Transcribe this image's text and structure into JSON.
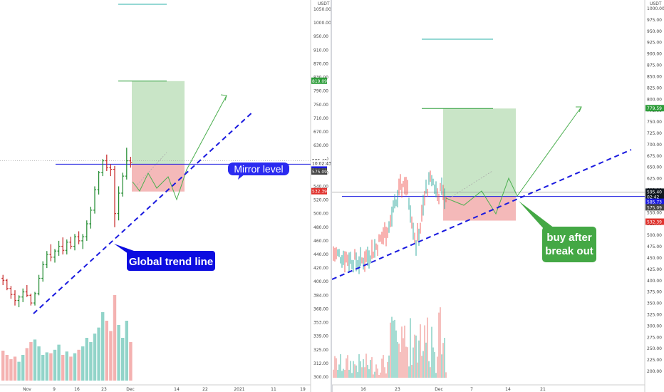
{
  "panels": [
    {
      "id": "left",
      "price_unit": "USDT",
      "price_ticks": [
        "1050.00",
        "1000.00",
        "950.00",
        "910.00",
        "870.00",
        "830.00",
        "790.00",
        "750.00",
        "710.00",
        "670.00",
        "630.00",
        "600.00",
        "560.00",
        "540.00",
        "520.00",
        "500.00",
        "480.00",
        "460.00",
        "440.00",
        "420.00",
        "400.00",
        "384.00",
        "368.00",
        "353.00",
        "339.00",
        "325.00",
        "312.00",
        "300.00"
      ],
      "time_ticks": [
        "Nov",
        "9",
        "16",
        "23",
        "Dec",
        "14",
        "22",
        "2021",
        "11",
        "19"
      ],
      "price_labels": [
        {
          "text": "819.09",
          "color": "#2e9d3a"
        },
        {
          "text": "595.40",
          "color": "#ffffff",
          "fg": "#222"
        },
        {
          "text": "10:02:43",
          "color": "#ffffff",
          "fg": "#222"
        },
        {
          "text": "584.92",
          "color": "#1a1adf"
        },
        {
          "text": "575.09",
          "color": "#444444"
        },
        {
          "text": "532.39",
          "color": "#e0322d"
        }
      ],
      "annotations": [
        {
          "text": "Mirror level",
          "bg": "#2a2af0"
        },
        {
          "text": "Global trend line",
          "bg": "#0c0ce0"
        }
      ],
      "chart_data": {
        "type": "candlestick",
        "timeframe_note": "daily candles, Nov to early Dec",
        "ohlc_approx": [
          [
            405,
            410,
            396,
            402
          ],
          [
            402,
            404,
            390,
            392
          ],
          [
            392,
            395,
            380,
            385
          ],
          [
            385,
            390,
            372,
            378
          ],
          [
            378,
            384,
            370,
            382
          ],
          [
            382,
            392,
            376,
            388
          ],
          [
            388,
            396,
            382,
            384
          ],
          [
            384,
            386,
            372,
            375
          ],
          [
            375,
            388,
            372,
            386
          ],
          [
            386,
            410,
            384,
            405
          ],
          [
            405,
            430,
            400,
            425
          ],
          [
            425,
            445,
            420,
            440
          ],
          [
            440,
            455,
            430,
            436
          ],
          [
            436,
            448,
            428,
            445
          ],
          [
            445,
            460,
            438,
            452
          ],
          [
            452,
            465,
            440,
            446
          ],
          [
            446,
            462,
            440,
            458
          ],
          [
            458,
            466,
            448,
            452
          ],
          [
            452,
            470,
            446,
            466
          ],
          [
            466,
            474,
            455,
            460
          ],
          [
            460,
            470,
            448,
            466
          ],
          [
            466,
            490,
            460,
            485
          ],
          [
            485,
            510,
            478,
            505
          ],
          [
            505,
            540,
            500,
            535
          ],
          [
            535,
            565,
            528,
            560
          ],
          [
            560,
            600,
            555,
            595
          ],
          [
            595,
            610,
            565,
            575
          ],
          [
            575,
            585,
            555,
            570
          ],
          [
            570,
            580,
            480,
            500
          ],
          [
            500,
            540,
            490,
            530
          ],
          [
            530,
            560,
            525,
            555
          ],
          [
            555,
            625,
            550,
            595
          ],
          [
            595,
            605,
            575,
            590
          ]
        ],
        "volume_relative": [
          0.35,
          0.3,
          0.25,
          0.28,
          0.22,
          0.3,
          0.38,
          0.45,
          0.48,
          0.4,
          0.3,
          0.33,
          0.32,
          0.36,
          0.42,
          0.3,
          0.34,
          0.28,
          0.32,
          0.36,
          0.4,
          0.5,
          0.45,
          0.55,
          0.62,
          0.8,
          0.7,
          0.58,
          1.0,
          0.65,
          0.5,
          0.7,
          0.45
        ],
        "levels": {
          "target_top": 819.09,
          "entry": 584.92,
          "stop": 532.39,
          "mirror_level": 584.92,
          "last_price": 595.4,
          "prev_close": 575.09
        },
        "ylim": [
          300,
          1050
        ]
      }
    },
    {
      "id": "right",
      "price_unit": "USDT",
      "price_ticks": [
        "1000.00",
        "975.00",
        "950.00",
        "925.00",
        "900.00",
        "875.00",
        "850.00",
        "825.00",
        "800.00",
        "775.00",
        "750.00",
        "725.00",
        "700.00",
        "675.00",
        "650.00",
        "625.00",
        "600.00",
        "575.00",
        "550.00",
        "525.00",
        "500.00",
        "475.00",
        "450.00",
        "425.00",
        "400.00",
        "375.00",
        "350.00",
        "325.00",
        "300.00",
        "275.00",
        "250.00",
        "225.00",
        "200.00"
      ],
      "time_ticks": [
        "16",
        "23",
        "Dec",
        "7",
        "14",
        "21"
      ],
      "price_labels": [
        {
          "text": "779.59",
          "color": "#2e9d3a"
        },
        {
          "text": "595.40",
          "color": "#101820"
        },
        {
          "text": "02:42",
          "color": "#101820"
        },
        {
          "text": "585.73",
          "color": "#1a1adf"
        },
        {
          "text": "575.09",
          "color": "#444444"
        },
        {
          "text": "532.39",
          "color": "#e0322d"
        }
      ],
      "annotations": [
        {
          "text": "buy after\nbreak out",
          "bg": "#44a845"
        }
      ],
      "chart_data": {
        "type": "candlestick",
        "timeframe_note": "intraday candles, mid-Nov to early Dec",
        "levels": {
          "target_top": 779.59,
          "entry": 585.73,
          "stop": 532.39,
          "last_price": 595.4,
          "prev_close": 575.09
        },
        "ylim": [
          200,
          1000
        ]
      }
    }
  ]
}
